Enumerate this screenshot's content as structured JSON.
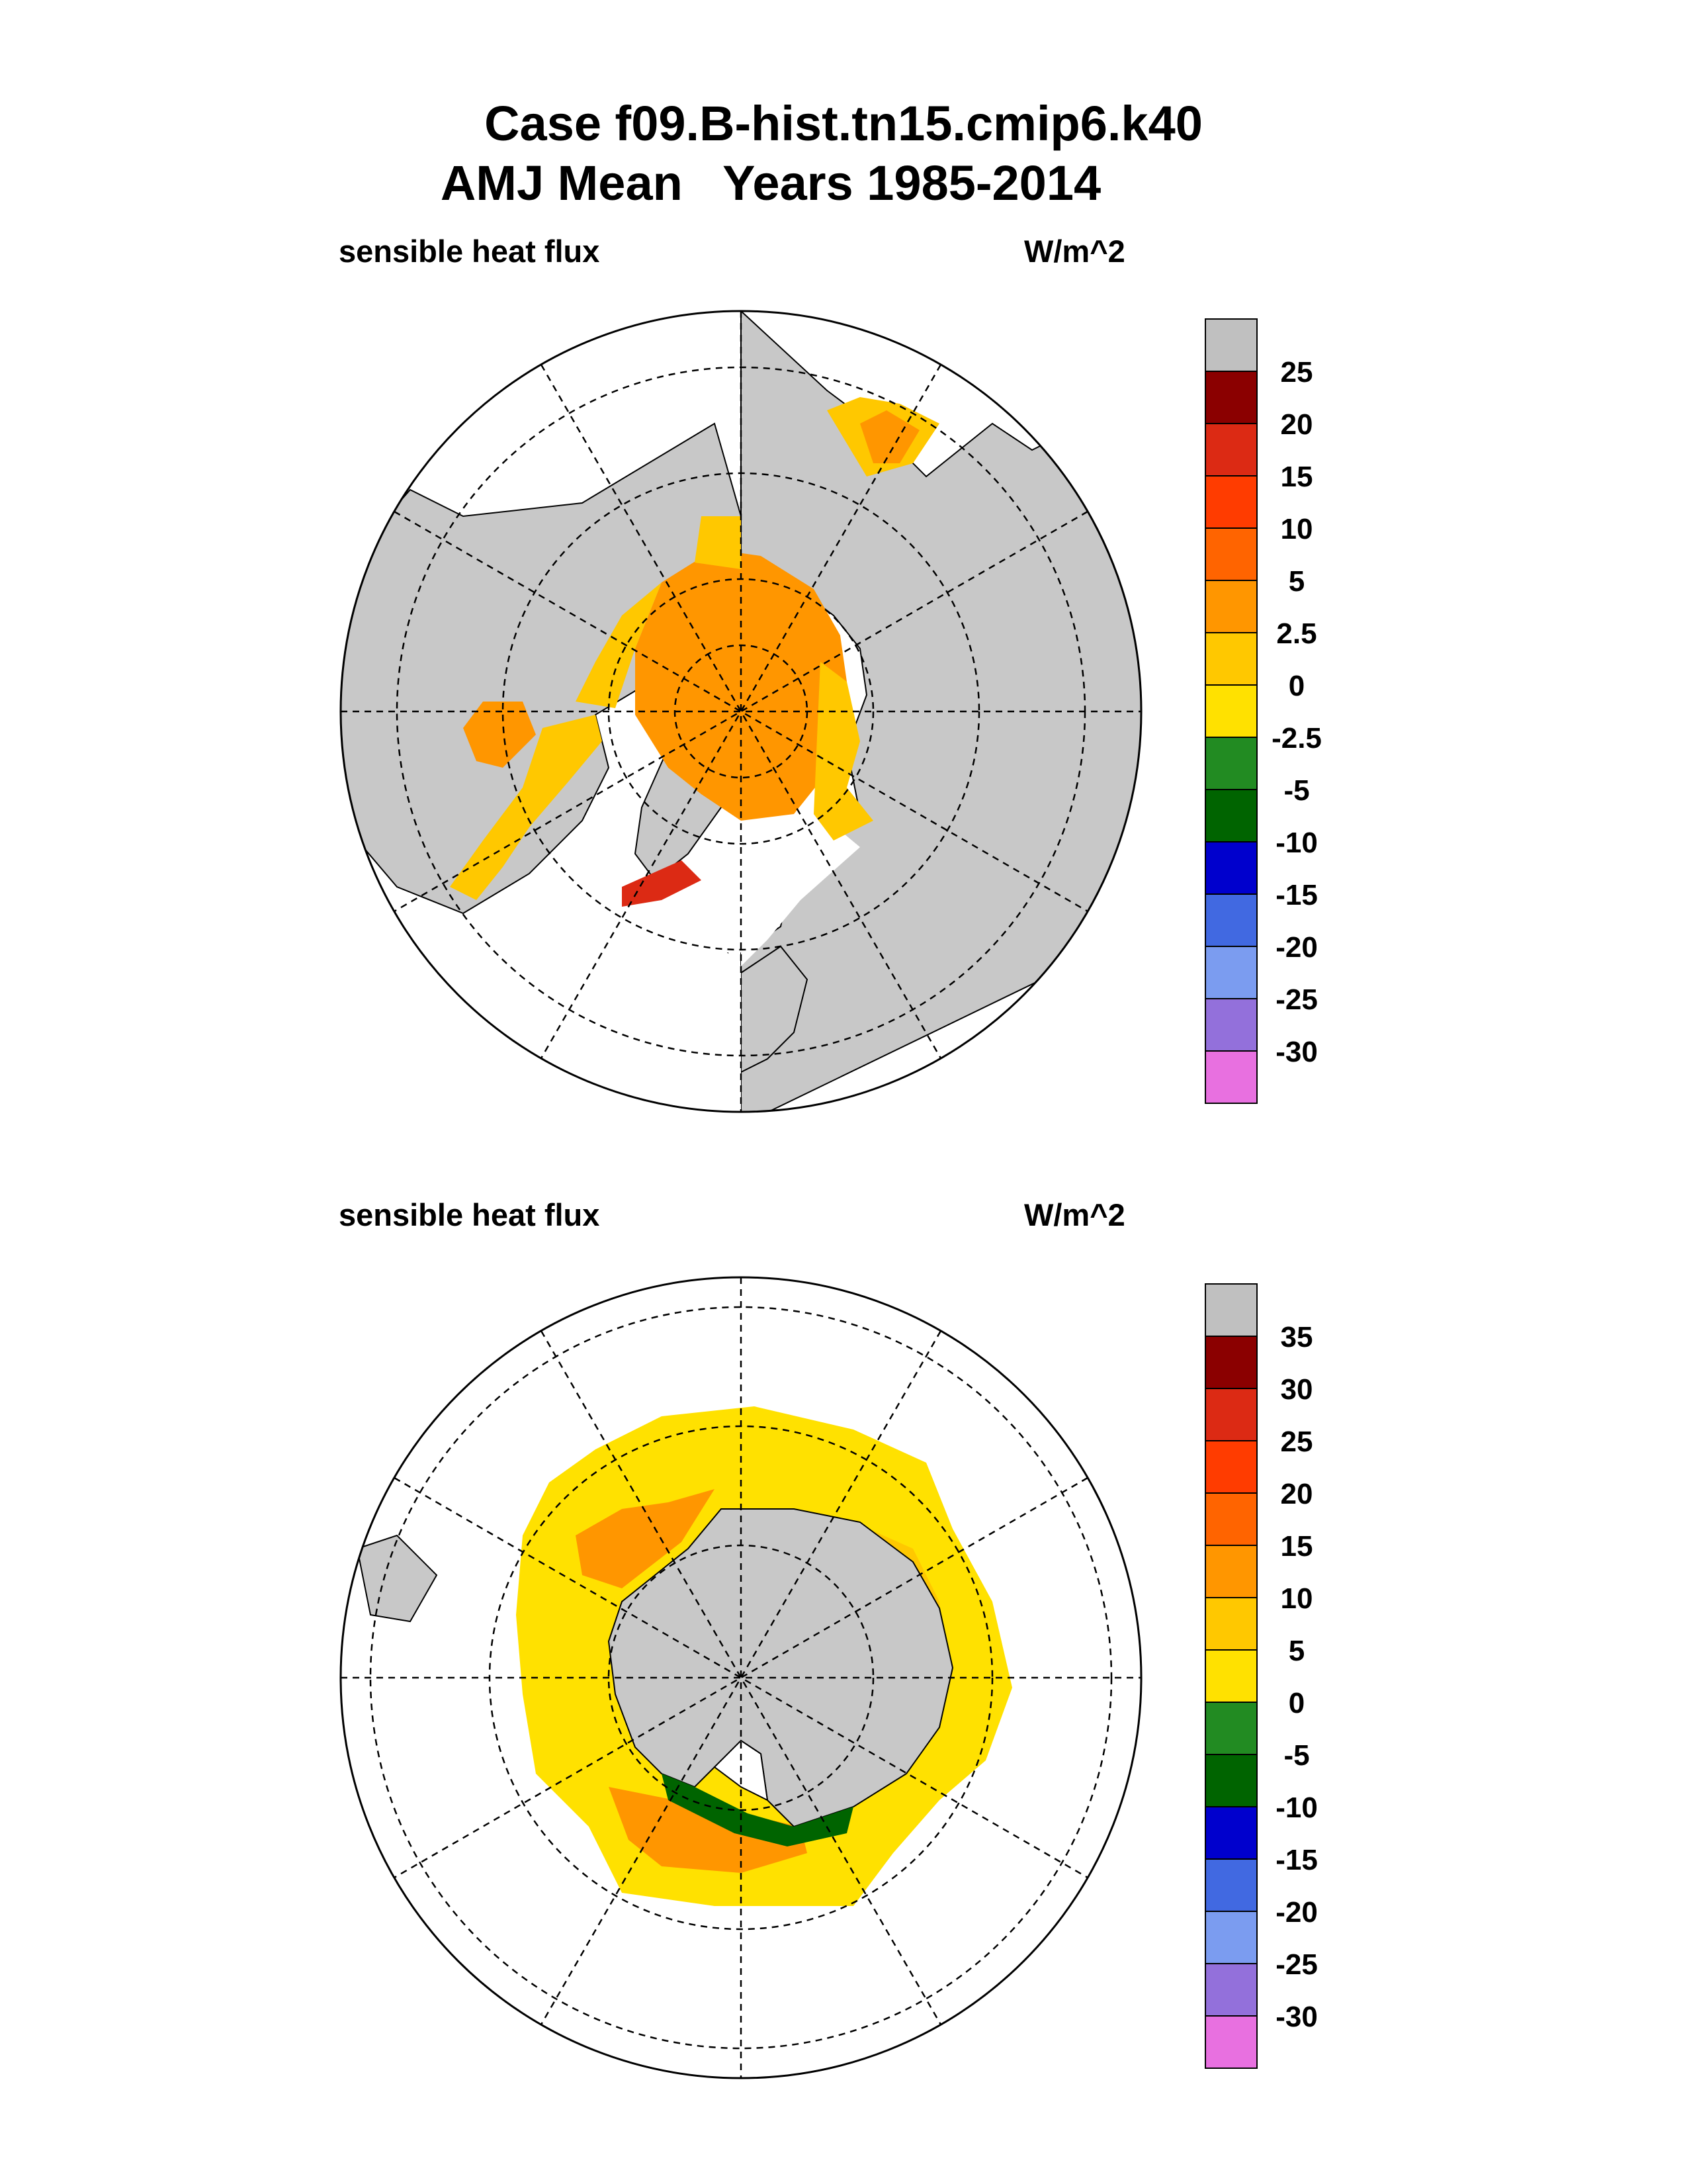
{
  "figure": {
    "title_line1": "Case f09.B-hist.tn15.cmip6.k40",
    "title_line2": "AMJ Mean   Years 1985-2014"
  },
  "colors": {
    "land": "#c8c8c8",
    "ocean_nodata": "#ffffff",
    "gridline": "#000000"
  },
  "panels": [
    {
      "hemisphere": "north",
      "left_label": "sensible heat flux",
      "right_label": "W/m^2",
      "colorbar": {
        "top_color": "#c0c0c0",
        "labels": [
          "25",
          "20",
          "15",
          "10",
          "5",
          "2.5",
          "0",
          "-2.5",
          "-5",
          "-10",
          "-15",
          "-20",
          "-25",
          "-30"
        ],
        "colors": [
          "#8b0000",
          "#dc2a14",
          "#ff3c00",
          "#ff6400",
          "#ff9600",
          "#ffc800",
          "#ffe100",
          "#228b22",
          "#006400",
          "#0000cd",
          "#4169e1",
          "#7b9cf0",
          "#9370db",
          "#e870e0"
        ]
      }
    },
    {
      "hemisphere": "south",
      "left_label": "sensible heat flux",
      "right_label": "W/m^2",
      "colorbar": {
        "top_color": "#c0c0c0",
        "labels": [
          "35",
          "30",
          "25",
          "20",
          "15",
          "10",
          "5",
          "0",
          "-5",
          "-10",
          "-15",
          "-20",
          "-25",
          "-30"
        ],
        "colors": [
          "#8b0000",
          "#dc2a14",
          "#ff3c00",
          "#ff6400",
          "#ff9600",
          "#ffc800",
          "#ffe100",
          "#228b22",
          "#006400",
          "#0000cd",
          "#4169e1",
          "#7b9cf0",
          "#9370db",
          "#e870e0"
        ]
      }
    }
  ]
}
